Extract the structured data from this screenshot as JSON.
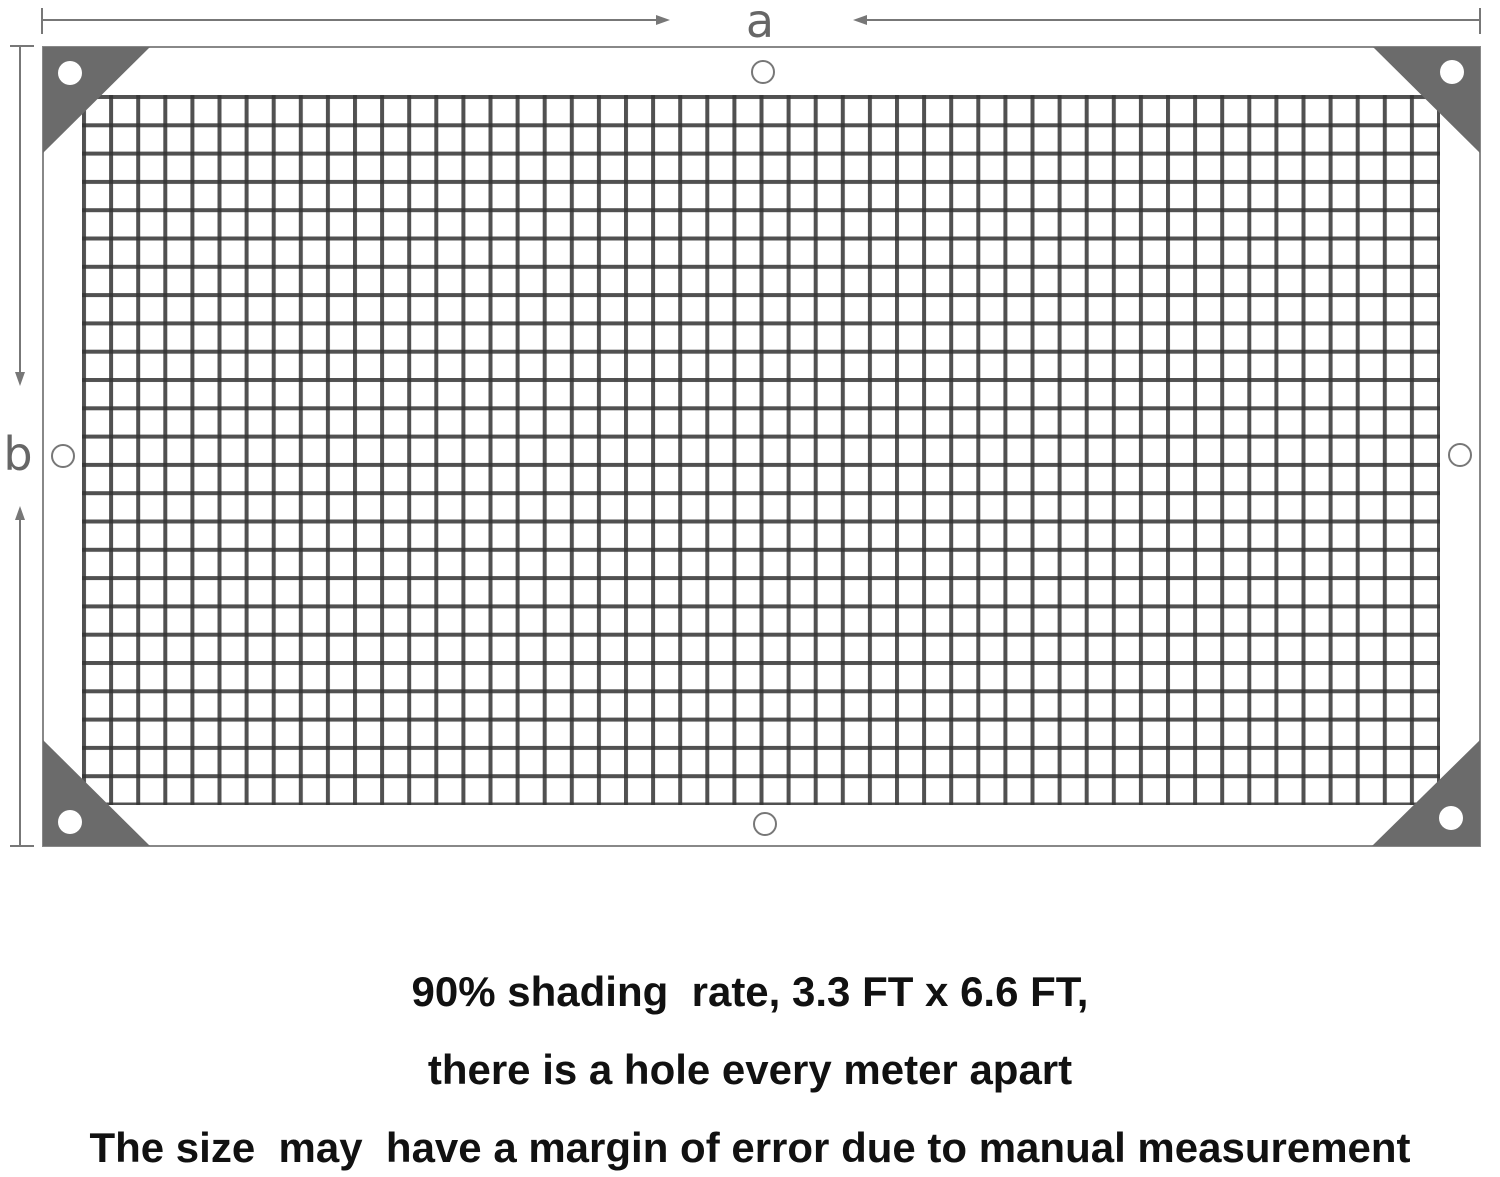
{
  "dimensions": {
    "width_label": "a",
    "height_label": "b"
  },
  "colors": {
    "frame": "#888888",
    "corner_patch": "#6b6b6b",
    "mesh": "#333333",
    "caption": "#111111"
  },
  "caption": {
    "line1": "90% shading  rate, 3.3 FT x 6.6 FT,",
    "line2": "there is a hole every meter apart",
    "line3": "The size  may  have a margin of error due to manual measurement"
  }
}
